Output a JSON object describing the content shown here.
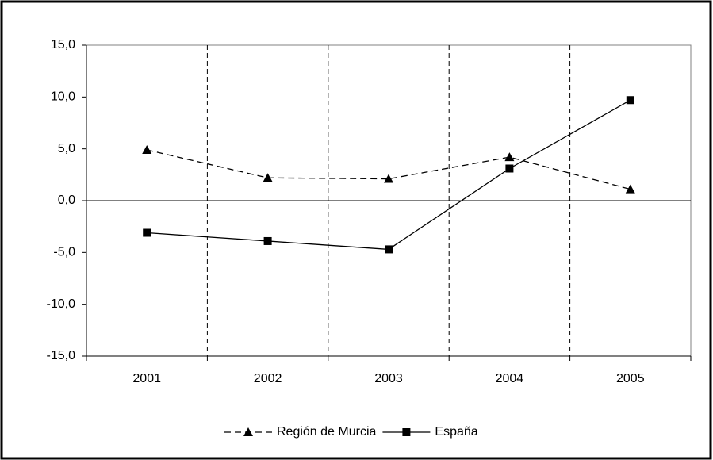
{
  "chart_data": {
    "type": "line",
    "categories": [
      "2001",
      "2002",
      "2003",
      "2004",
      "2005"
    ],
    "series": [
      {
        "name": "Región de Murcia",
        "color": "#000000",
        "line_style": "dashed",
        "marker": "triangle",
        "values": [
          4.9,
          2.2,
          2.1,
          4.2,
          1.1
        ]
      },
      {
        "name": "España",
        "color": "#000000",
        "line_style": "solid",
        "marker": "square",
        "values": [
          -3.1,
          -3.9,
          -4.7,
          3.1,
          9.7
        ]
      }
    ],
    "ylim": [
      -15,
      15
    ],
    "yticks": [
      {
        "value": -15,
        "label": "-15,0"
      },
      {
        "value": -10,
        "label": "-10,0"
      },
      {
        "value": -5,
        "label": "-5,0"
      },
      {
        "value": 0,
        "label": "0,0"
      },
      {
        "value": 5,
        "label": "5,0"
      },
      {
        "value": 10,
        "label": "10,0"
      },
      {
        "value": 15,
        "label": "15,0"
      }
    ],
    "grid": "vertical-dashed",
    "legend": "bottom"
  }
}
